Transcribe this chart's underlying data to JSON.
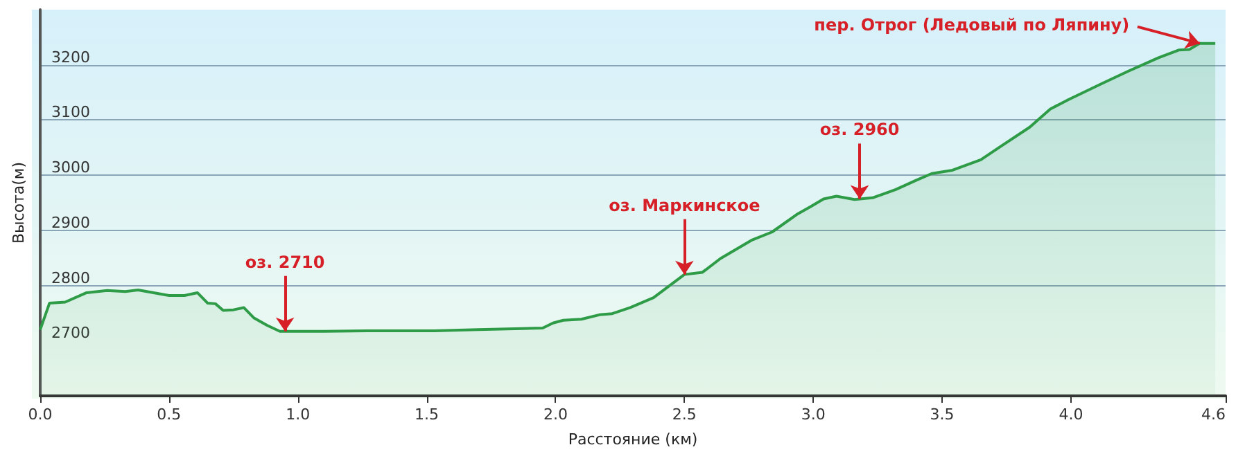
{
  "chart_data": {
    "type": "area",
    "xlabel": "Расстояние (км)",
    "ylabel": "Высота(м)",
    "x": [
      0,
      0.036,
      0.097,
      0.18,
      0.26,
      0.33,
      0.38,
      0.44,
      0.5,
      0.56,
      0.61,
      0.65,
      0.68,
      0.71,
      0.75,
      0.79,
      0.83,
      0.88,
      0.93,
      0.99,
      1.1,
      1.27,
      1.44,
      1.53,
      1.7,
      1.95,
      1.99,
      2.03,
      2.1,
      2.17,
      2.22,
      2.29,
      2.38,
      2.5,
      2.57,
      2.64,
      2.76,
      2.84,
      2.94,
      2.99,
      3.04,
      3.09,
      3.16,
      3.23,
      3.32,
      3.4,
      3.46,
      3.54,
      3.65,
      3.73,
      3.84,
      3.92,
      3.99,
      4.12,
      4.22,
      4.34,
      4.42,
      4.46,
      4.5,
      4.56
    ],
    "series": [
      {
        "color": "#2e9b47",
        "values": [
          2720,
          2768,
          2770,
          2787,
          2791,
          2789,
          2792,
          2787,
          2782,
          2782,
          2787,
          2768,
          2767,
          2755,
          2756,
          2760,
          2741,
          2728,
          2717,
          2717,
          2717,
          2718,
          2718,
          2718,
          2720,
          2723,
          2732,
          2737,
          2739,
          2747,
          2749,
          2760,
          2778,
          2820,
          2824,
          2849,
          2882,
          2897,
          2930,
          2943,
          2957,
          2962,
          2956,
          2959,
          2974,
          2991,
          3003,
          3009,
          3028,
          3053,
          3087,
          3120,
          3137,
          3166,
          3188,
          3213,
          3227,
          3228,
          3239,
          3239
        ]
      }
    ],
    "xlim": [
      0,
      4.6
    ],
    "xticks": [
      {
        "value": 0,
        "label": "0.0"
      },
      0.5,
      {
        "value": 1,
        "label": "1.0"
      },
      1.5,
      {
        "value": 2,
        "label": "2.0"
      },
      2.5,
      {
        "value": 3,
        "label": "3.0"
      },
      3.5,
      {
        "value": 4,
        "label": "4.0"
      },
      4.6
    ],
    "ylim": [
      2600,
      3300
    ],
    "yticks": [
      2700,
      2800,
      2900,
      3000,
      3100,
      3200
    ],
    "grid": "y",
    "marker": "none",
    "line_style": "solid",
    "annotations": [
      {
        "text": "оз. 2710",
        "x": 0.95,
        "y": 2717
      },
      {
        "text": "оз. Маркинское",
        "x": 2.5,
        "y": 2820
      },
      {
        "text": "оз. 2960",
        "x": 3.18,
        "y": 2957
      },
      {
        "text": "пер. Отрог (Ледовый по Ляпину)",
        "x": 4.5,
        "y": 3239
      }
    ]
  }
}
